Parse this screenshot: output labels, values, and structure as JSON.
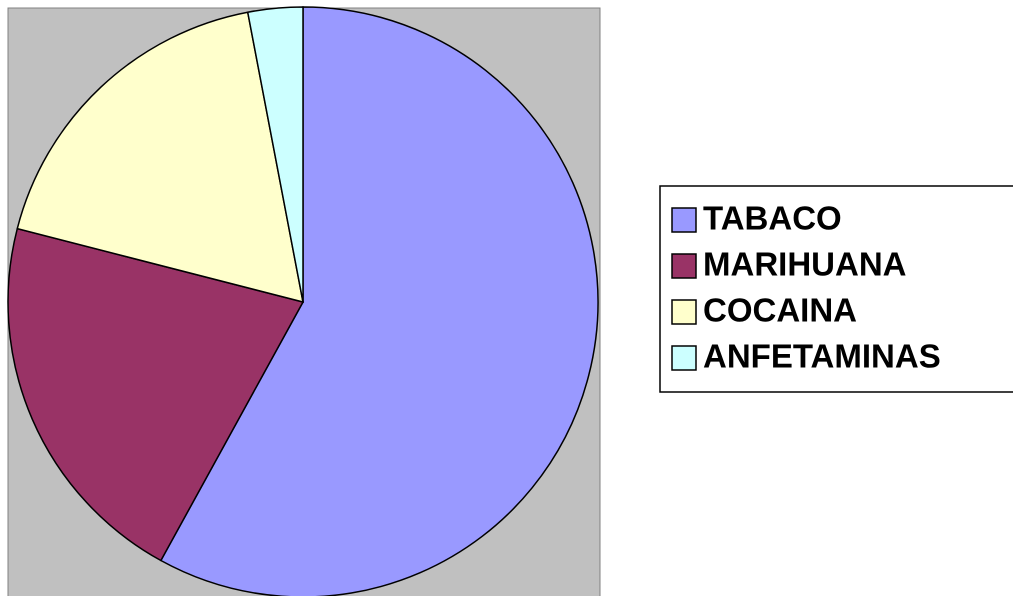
{
  "chart_data": {
    "type": "pie",
    "categories": [
      "TABACO",
      "MARIHUANA",
      "COCAINA",
      "ANFETAMINAS"
    ],
    "values": [
      58,
      21,
      18,
      3
    ],
    "colors": [
      "#9999ff",
      "#993366",
      "#ffffcc",
      "#ccffff"
    ],
    "legend": "right"
  }
}
